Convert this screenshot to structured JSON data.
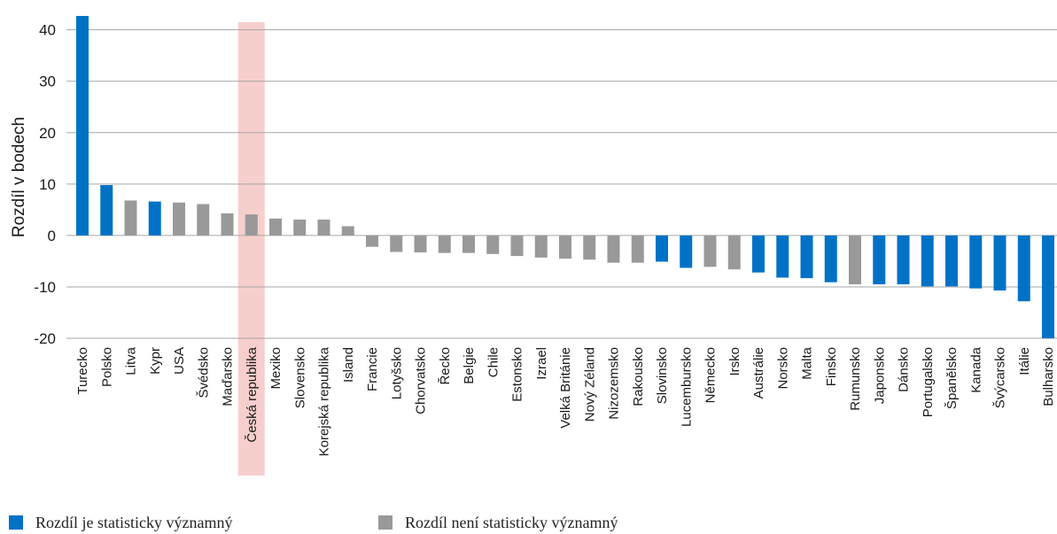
{
  "chart_data": {
    "type": "bar",
    "ylabel": "Rozdíl v bodech",
    "ylim": [
      -20,
      42.7
    ],
    "yticks": [
      40,
      30,
      20,
      10,
      0,
      -10,
      -20
    ],
    "grid": true,
    "highlight_category": "Česká republika",
    "categories": [
      "Turecko",
      "Polsko",
      "Litva",
      "Kypr",
      "USA",
      "Švédsko",
      "Maďarsko",
      "Česká republika",
      "Mexiko",
      "Slovensko",
      "Korejská republika",
      "Island",
      "Francie",
      "Lotyšsko",
      "Chorvatsko",
      "Řecko",
      "Belgie",
      "Chile",
      "Estonsko",
      "Izrael",
      "Velká Británie",
      "Nový Zéland",
      "Nizozemsko",
      "Rakousko",
      "Slovinsko",
      "Lucembursko",
      "Německo",
      "Irsko",
      "Austrálie",
      "Norsko",
      "Malta",
      "Finsko",
      "Rumunsko",
      "Japonsko",
      "Dánsko",
      "Portugalsko",
      "Španělsko",
      "Kanada",
      "Švýcarsko",
      "Itálie",
      "Bulharsko"
    ],
    "values": [
      42.7,
      9.8,
      6.8,
      6.6,
      6.4,
      6.1,
      4.3,
      4.1,
      3.3,
      3.1,
      3.1,
      1.8,
      -2.2,
      -3.2,
      -3.3,
      -3.4,
      -3.4,
      -3.6,
      -4.0,
      -4.3,
      -4.5,
      -4.7,
      -5.3,
      -5.3,
      -5.1,
      -6.3,
      -6.1,
      -6.6,
      -7.2,
      -8.2,
      -8.3,
      -9.1,
      -9.5,
      -9.5,
      -9.5,
      -9.9,
      -9.9,
      -10.3,
      -10.7,
      -12.8,
      -20.0
    ],
    "significant": [
      true,
      true,
      false,
      true,
      false,
      false,
      false,
      false,
      false,
      false,
      false,
      false,
      false,
      false,
      false,
      false,
      false,
      false,
      false,
      false,
      false,
      false,
      false,
      false,
      true,
      true,
      false,
      false,
      true,
      true,
      true,
      true,
      false,
      true,
      true,
      true,
      true,
      true,
      true,
      true,
      true
    ],
    "colors": {
      "significant": "#0072c6",
      "not_significant": "#999999",
      "highlight": "#f6cfcd",
      "grid": "#a6a6a6",
      "text": "#1a1a1a"
    }
  },
  "legend": {
    "significant_label": "Rozdíl je statisticky významný",
    "not_significant_label": "Rozdíl není statisticky významný"
  }
}
